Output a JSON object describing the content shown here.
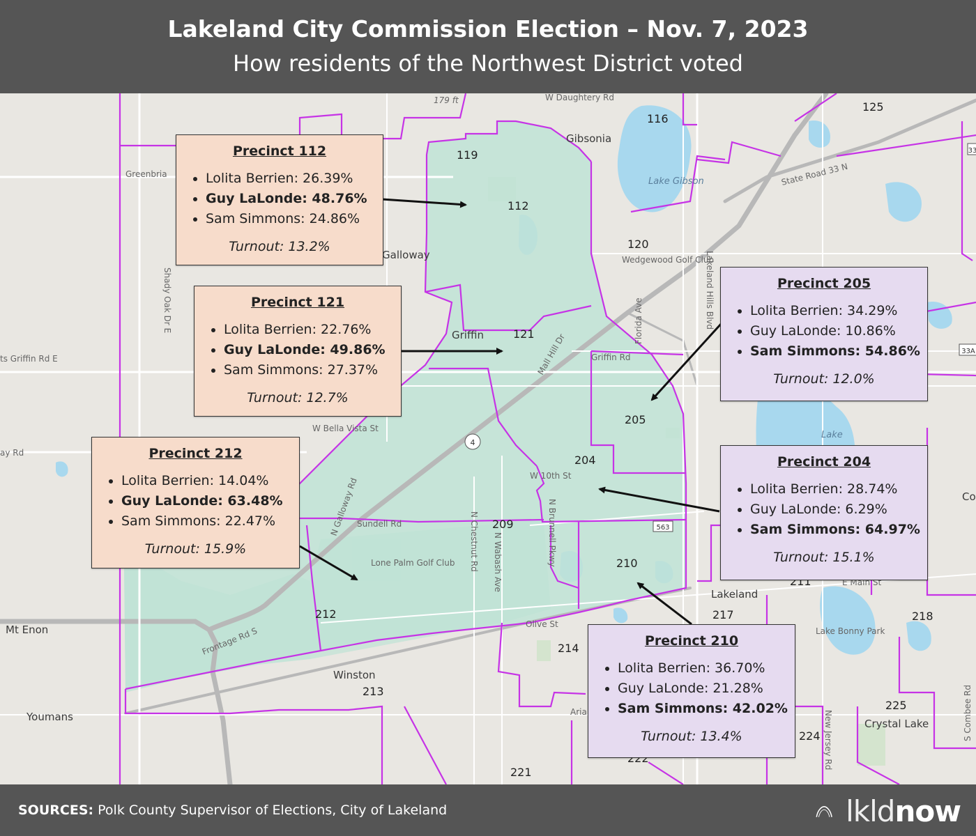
{
  "header": {
    "title": "Lakeland City Commission Election – Nov. 7, 2023",
    "subtitle": "How residents of the Northwest District voted"
  },
  "colors": {
    "header_bg": "#555555",
    "district_fill": "#bfe3d6",
    "precinct_border": "#c633e6",
    "card_peach": "#f7dccb",
    "card_lavender": "#e6dbf0",
    "water": "#a8d8ee"
  },
  "map": {
    "precinct_numbers": [
      "125",
      "116",
      "119",
      "112",
      "120",
      "121",
      "205",
      "204",
      "209",
      "210",
      "211",
      "212",
      "213",
      "214",
      "217",
      "218",
      "221",
      "222",
      "224",
      "225"
    ],
    "place_labels": [
      "Gibsonia",
      "Greenbria",
      "Galloway",
      "Griffin",
      "Wedgewood Golf Club",
      "Lake Gibson",
      "Lake",
      "Lone Palm Golf Club",
      "Lakeland",
      "Lake Bonny Park",
      "Mt Enon",
      "Youmans",
      "Winston",
      "Crystal Lake",
      "Co Sett"
    ],
    "street_labels": [
      "W Daughtery Rd",
      "State Road 33 N",
      "Shady Oak Dr E",
      "ts Griffin Rd E",
      "W Bella Vista St",
      "Griffin Rd",
      "Mall Hill Dr",
      "W 10th St",
      "N Galloway Rd",
      "Sundell Rd",
      "N Chestnut Rd",
      "N Wabash Ave",
      "N Brunnell Pkwy",
      "Lakeland Hills Blvd",
      "Florida Ave",
      "Olive St",
      "Frontage Rd S",
      "E Main St",
      "New Jersey Rd",
      "S Combee Rd",
      "ay Rd",
      "179 ft",
      "Aria",
      "563",
      "33",
      "33A"
    ]
  },
  "precincts": [
    {
      "title": "Precinct 112",
      "rows": [
        {
          "text": "Lolita Berrien: 26.39%",
          "win": false
        },
        {
          "text": "Guy LaLonde: 48.76%",
          "win": true
        },
        {
          "text": "Sam Simmons: 24.86%",
          "win": false
        }
      ],
      "turnout": "Turnout: 13.2%"
    },
    {
      "title": "Precinct 121",
      "rows": [
        {
          "text": "Lolita Berrien: 22.76%",
          "win": false
        },
        {
          "text": "Guy LaLonde: 49.86%",
          "win": true
        },
        {
          "text": "Sam Simmons: 27.37%",
          "win": false
        }
      ],
      "turnout": "Turnout: 12.7%"
    },
    {
      "title": "Precinct 212",
      "rows": [
        {
          "text": "Lolita Berrien: 14.04%",
          "win": false
        },
        {
          "text": "Guy LaLonde: 63.48%",
          "win": true
        },
        {
          "text": "Sam Simmons: 22.47%",
          "win": false
        }
      ],
      "turnout": "Turnout: 15.9%"
    },
    {
      "title": "Precinct 205",
      "rows": [
        {
          "text": "Lolita Berrien: 34.29%",
          "win": false
        },
        {
          "text": "Guy LaLonde: 10.86%",
          "win": false
        },
        {
          "text": "Sam Simmons: 54.86%",
          "win": true
        }
      ],
      "turnout": "Turnout: 12.0%"
    },
    {
      "title": "Precinct 204",
      "rows": [
        {
          "text": "Lolita Berrien: 28.74%",
          "win": false
        },
        {
          "text": "Guy LaLonde: 6.29%",
          "win": false
        },
        {
          "text": "Sam Simmons: 64.97%",
          "win": true
        }
      ],
      "turnout": "Turnout: 15.1%"
    },
    {
      "title": "Precinct 210",
      "rows": [
        {
          "text": "Lolita Berrien: 36.70%",
          "win": false
        },
        {
          "text": "Guy LaLonde: 21.28%",
          "win": false
        },
        {
          "text": "Sam Simmons: 42.02%",
          "win": true
        }
      ],
      "turnout": "Turnout: 13.4%"
    }
  ],
  "footer": {
    "sources_label": "SOURCES:",
    "sources_text": "Polk County Supervisor of Elections, City of Lakeland",
    "logo_thin": "lkld",
    "logo_bold": "now"
  }
}
